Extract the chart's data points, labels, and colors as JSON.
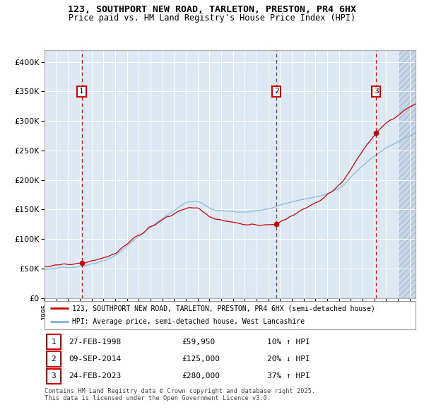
{
  "title_line1": "123, SOUTHPORT NEW ROAD, TARLETON, PRESTON, PR4 6HX",
  "title_line2": "Price paid vs. HM Land Registry's House Price Index (HPI)",
  "legend_line1": "123, SOUTHPORT NEW ROAD, TARLETON, PRESTON, PR4 6HX (semi-detached house)",
  "legend_line2": "HPI: Average price, semi-detached house, West Lancashire",
  "footer": "Contains HM Land Registry data © Crown copyright and database right 2025.\nThis data is licensed under the Open Government Licence v3.0.",
  "sale_points": [
    {
      "label": "1",
      "date": "27-FEB-1998",
      "price": 59950,
      "pct": "10%",
      "direction": "↑",
      "year": 1998.15
    },
    {
      "label": "2",
      "date": "09-SEP-2014",
      "price": 125000,
      "pct": "20%",
      "direction": "↓",
      "year": 2014.69
    },
    {
      "label": "3",
      "date": "24-FEB-2023",
      "price": 280000,
      "pct": "37%",
      "direction": "↑",
      "year": 2023.15
    }
  ],
  "hpi_color": "#7ab3d4",
  "price_color": "#cc0000",
  "background_color": "#dce9f5",
  "grid_color": "#ffffff",
  "ylim": [
    0,
    420000
  ],
  "xlim_start": 1995.0,
  "xlim_end": 2026.5,
  "hatch_start": 2025.0,
  "yticks": [
    0,
    50000,
    100000,
    150000,
    200000,
    250000,
    300000,
    350000,
    400000
  ],
  "xticks": [
    1995,
    1996,
    1997,
    1998,
    1999,
    2000,
    2001,
    2002,
    2003,
    2004,
    2005,
    2006,
    2007,
    2008,
    2009,
    2010,
    2011,
    2012,
    2013,
    2014,
    2015,
    2016,
    2017,
    2018,
    2019,
    2020,
    2021,
    2022,
    2023,
    2024,
    2025,
    2026
  ]
}
